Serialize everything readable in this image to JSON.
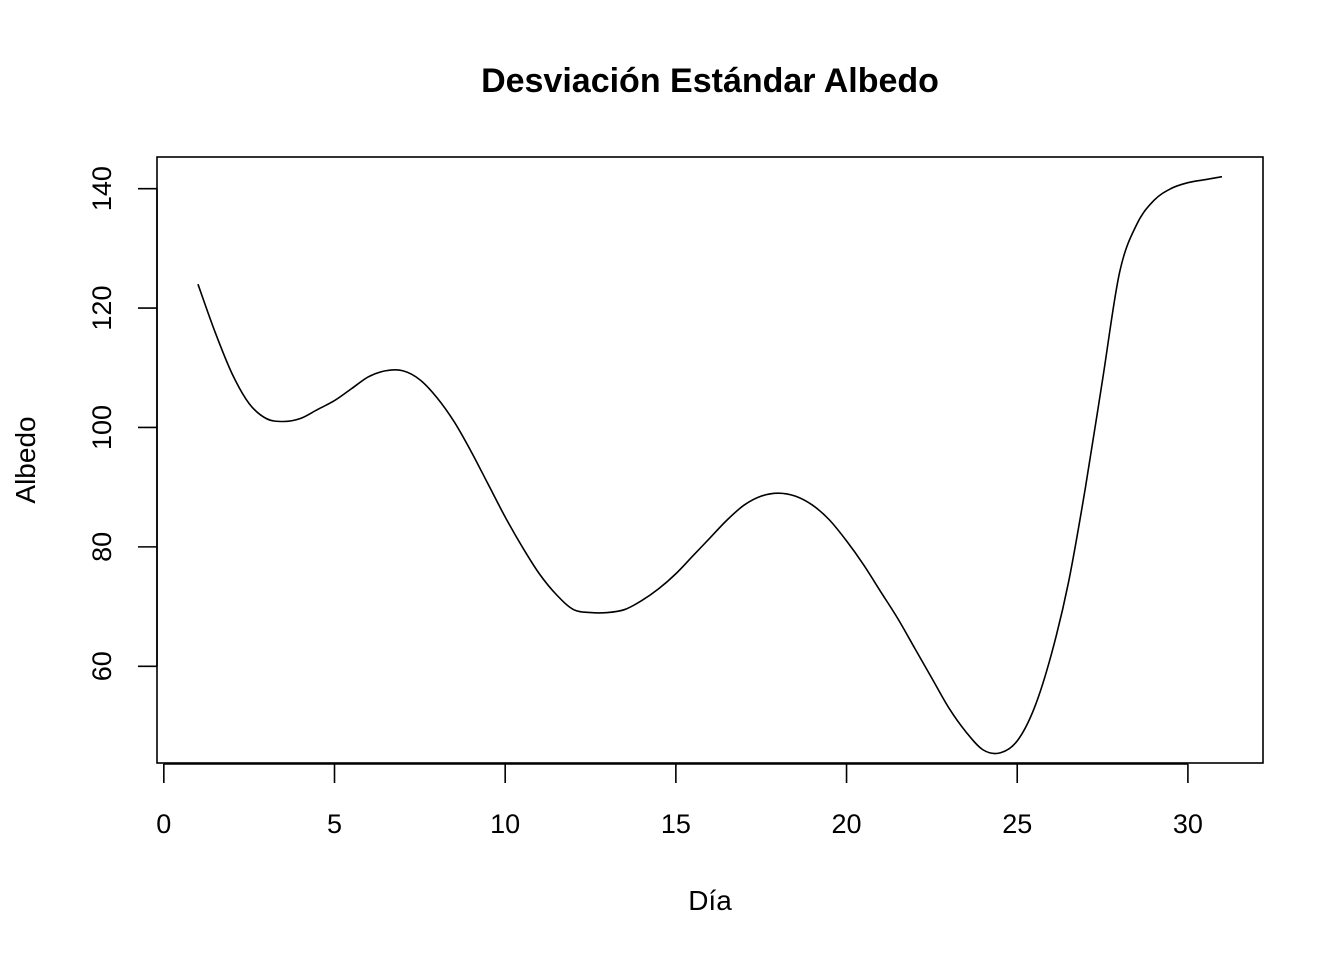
{
  "chart_data": {
    "type": "line",
    "title": "Desviación Estándar Albedo",
    "xlabel": "Día",
    "ylabel": "Albedo",
    "xlim": [
      -0.2,
      32.2
    ],
    "ylim": [
      43.8,
      145.3
    ],
    "xticks": [
      0,
      5,
      10,
      15,
      20,
      25,
      30
    ],
    "yticks": [
      60,
      80,
      100,
      120,
      140
    ],
    "grid": false,
    "line_color": "#000000",
    "series": [
      {
        "x": [
          1,
          1.5,
          2,
          2.5,
          3,
          3.5,
          4,
          4.5,
          5,
          5.5,
          6,
          6.5,
          7,
          7.5,
          8,
          8.5,
          9,
          9.5,
          10,
          10.5,
          11,
          11.5,
          12,
          12.5,
          13,
          13.5,
          14,
          14.5,
          15,
          15.5,
          16,
          16.5,
          17,
          17.5,
          18,
          18.5,
          19,
          19.5,
          20,
          20.5,
          21,
          21.5,
          22,
          22.5,
          23,
          23.5,
          24,
          24.5,
          25,
          25.5,
          26,
          26.5,
          27,
          27.5,
          28,
          28.5,
          29,
          29.5,
          30,
          30.5,
          31
        ],
        "y": [
          124,
          116,
          109,
          104,
          101.5,
          101,
          101.5,
          103,
          104.5,
          106.5,
          108.5,
          109.5,
          109.5,
          108,
          105,
          101,
          96,
          90.5,
          85,
          80,
          75.5,
          72,
          69.5,
          69,
          69,
          69.5,
          71,
          73,
          75.5,
          78.5,
          81.5,
          84.5,
          87,
          88.5,
          89,
          88.5,
          87,
          84.5,
          81,
          77,
          72.5,
          68,
          63,
          58,
          53,
          49,
          46,
          45.5,
          47.5,
          53,
          62,
          74,
          90,
          108,
          126,
          134,
          138,
          140,
          141,
          141.5,
          142
        ]
      }
    ]
  }
}
